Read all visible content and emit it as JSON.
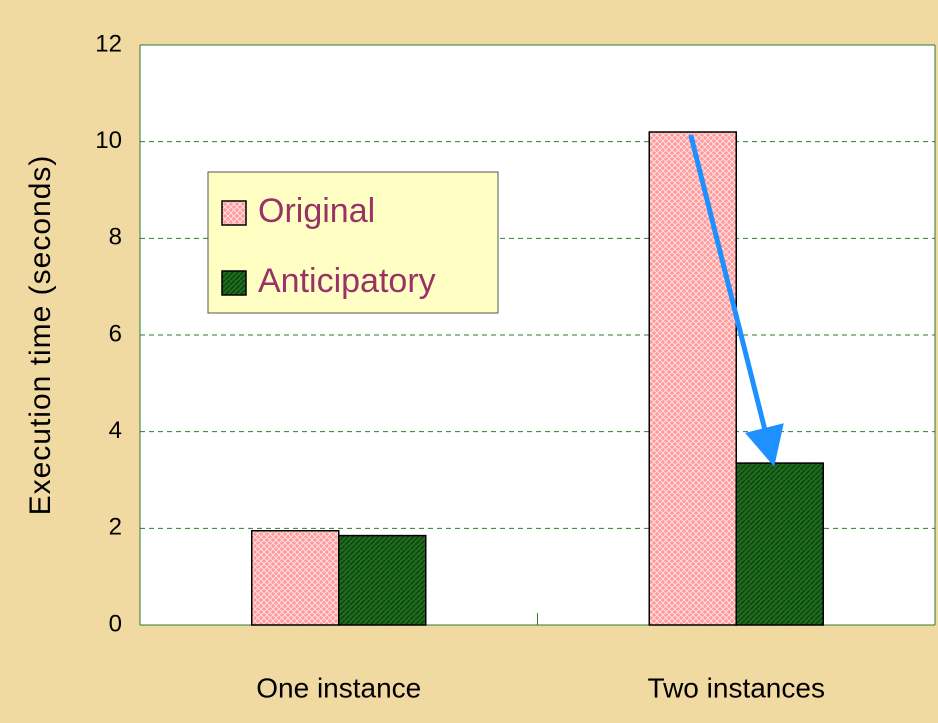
{
  "chart_data": {
    "type": "bar",
    "categories": [
      "One instance",
      "Two instances"
    ],
    "series": [
      {
        "name": "Original",
        "color": "#ff9a9a",
        "values": [
          1.95,
          10.2
        ]
      },
      {
        "name": "Anticipatory",
        "color": "#1f6b1f",
        "values": [
          1.85,
          3.35
        ]
      }
    ],
    "y_label": "Execution time (seconds)",
    "ylim": [
      0,
      12
    ],
    "yticks": [
      0,
      2,
      4,
      6,
      8,
      10,
      12
    ],
    "grid": true,
    "legend": "upper left"
  }
}
